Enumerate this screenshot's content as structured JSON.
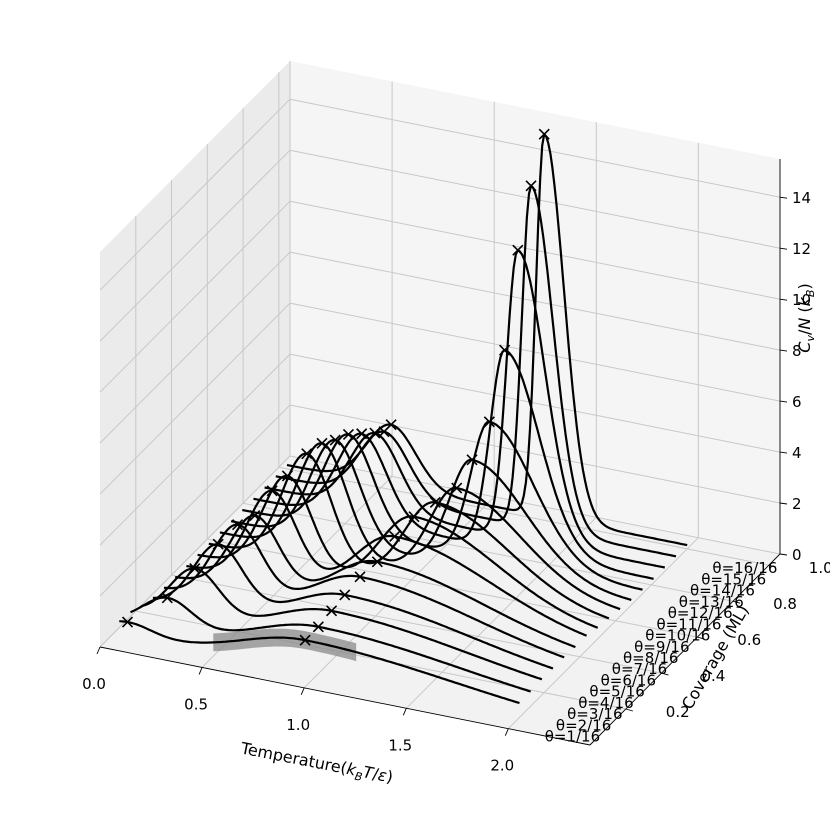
{
  "chart_data": {
    "type": "line3d",
    "xlabel": "Temperature(k_B T/ε)",
    "ylabel": "Coverage (ML)",
    "zlabel": "C_v/N (k_B)",
    "x_ticks": [
      "0.0",
      "0.5",
      "1.0",
      "1.5",
      "2.0"
    ],
    "y_ticks": [
      "0.2",
      "0.4",
      "0.6",
      "0.8",
      "1.0"
    ],
    "z_ticks": [
      "0",
      "2",
      "4",
      "6",
      "8",
      "10",
      "12",
      "14"
    ],
    "xlim": [
      0,
      2.4
    ],
    "ylim": [
      0,
      1.0625
    ],
    "zlim": [
      0,
      15.5
    ],
    "grid": true,
    "series_labels": [
      "θ=1/16",
      "θ=2/16",
      "θ=3/16",
      "θ=4/16",
      "θ=5/16",
      "θ=6/16",
      "θ=7/16",
      "θ=8/16",
      "θ=9/16",
      "θ=10/16",
      "θ=11/16",
      "θ=12/16",
      "θ=13/16",
      "θ=14/16",
      "θ=15/16",
      "θ=16/16"
    ],
    "coverage": [
      0.0625,
      0.125,
      0.1875,
      0.25,
      0.3125,
      0.375,
      0.4375,
      0.5,
      0.5625,
      0.625,
      0.6875,
      0.75,
      0.8125,
      0.875,
      0.9375,
      1.0
    ],
    "low_peak_T": [
      0.08,
      0.22,
      0.3,
      0.36,
      0.4,
      0.43,
      0.46,
      0.48,
      0.52,
      0.54,
      0.55,
      0.56,
      0.57,
      0.58,
      0.57,
      0.55
    ],
    "low_peak_Cv": [
      0.5,
      1.2,
      2.0,
      2.6,
      3.0,
      3.0,
      3.6,
      3.8,
      4.3,
      4.3,
      4.0,
      3.8,
      3.4,
      3.0,
      2.6,
      2.4
    ],
    "high_peak_T": [
      0.95,
      0.96,
      0.97,
      0.98,
      1.0,
      1.03,
      1.06,
      1.1,
      1.15,
      1.2,
      1.22,
      1.25,
      1.27,
      1.28,
      1.29,
      1.3
    ],
    "high_peak_Cv": [
      1.2,
      1.3,
      1.5,
      1.7,
      2.0,
      2.2,
      2.8,
      3.2,
      3.4,
      3.6,
      4.3,
      5.4,
      7.8,
      11.3,
      13.4,
      15.0
    ],
    "peak_width": [
      0.3,
      0.29,
      0.28,
      0.26,
      0.24,
      0.22,
      0.2,
      0.17,
      0.15,
      0.13,
      0.11,
      0.09,
      0.07,
      0.055,
      0.045,
      0.04
    ],
    "marker": "x"
  }
}
